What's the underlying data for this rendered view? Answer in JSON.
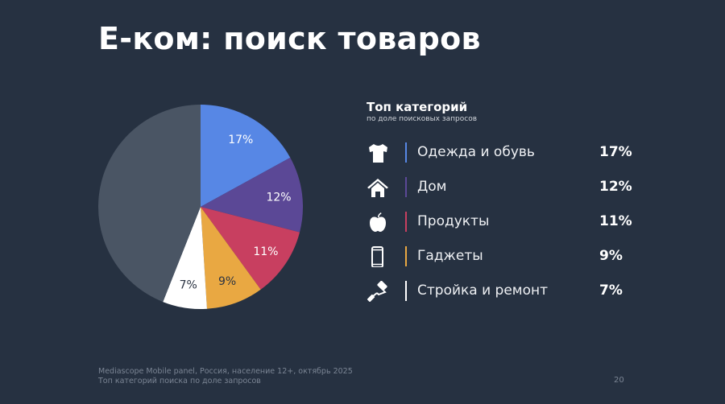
{
  "title": "E-ком: поиск товаров",
  "legend": {
    "title": "Топ категорий",
    "subtitle": "по доле поисковых запросов",
    "items": [
      {
        "label": "Одежда и обувь",
        "value": "17%",
        "icon": "tshirt-icon",
        "color": "#5787e5"
      },
      {
        "label": "Дом",
        "value": "12%",
        "icon": "house-icon",
        "color": "#5b4896"
      },
      {
        "label": "Продукты",
        "value": "11%",
        "icon": "apple-icon",
        "color": "#c83f60"
      },
      {
        "label": "Гаджеты",
        "value": "9%",
        "icon": "smartphone-icon",
        "color": "#e9a842"
      },
      {
        "label": "Стройка и ремонт",
        "value": "7%",
        "icon": "paint-roller-icon",
        "color": "#ffffff"
      }
    ]
  },
  "chart_data": {
    "type": "pie",
    "slices": [
      {
        "label": "Одежда и обувь",
        "value": 17,
        "data_label": "17%",
        "color": "#5787e5"
      },
      {
        "label": "Дом",
        "value": 12,
        "data_label": "12%",
        "color": "#5b4896"
      },
      {
        "label": "Продукты",
        "value": 11,
        "data_label": "11%",
        "color": "#c83f60"
      },
      {
        "label": "Гаджеты",
        "value": 9,
        "data_label": "9%",
        "color": "#e9a842"
      },
      {
        "label": "Стройка и ремонт",
        "value": 7,
        "data_label": "7%",
        "color": "#ffffff"
      },
      {
        "label": "",
        "value": 44,
        "data_label": "",
        "color": "#4a5564"
      }
    ]
  },
  "footer": {
    "source": "Mediascope Mobile panel, Россия, население 12+, октябрь 2025",
    "note": "Топ категорий поиска по доле запросов",
    "page_number": "20"
  }
}
